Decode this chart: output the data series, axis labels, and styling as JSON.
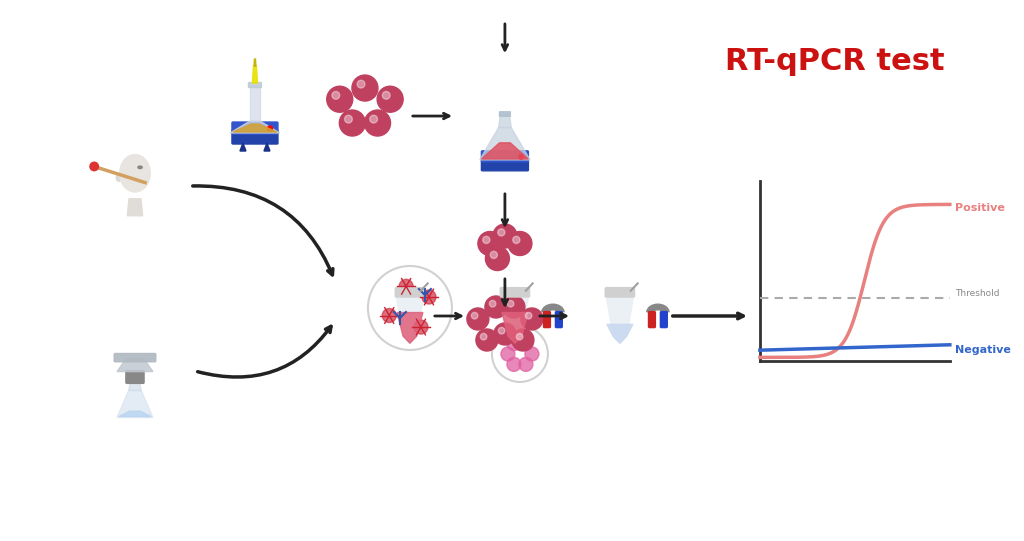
{
  "bg_color": "#ffffff",
  "title": "RT-qPCR test",
  "title_color": "#cc1111",
  "title_fontsize": 22,
  "positive_label": "Positive",
  "negative_label": "Negative",
  "threshold_label": "Threshold",
  "positive_color": "#e88080",
  "negative_color": "#3366cc",
  "threshold_color": "#aaaaaa",
  "nanoparticle_color": "#c04060",
  "arrow_color": "#222222",
  "tube_liquid_color": "#e0607a",
  "tube_liquid_color2": "#d0d0e8"
}
